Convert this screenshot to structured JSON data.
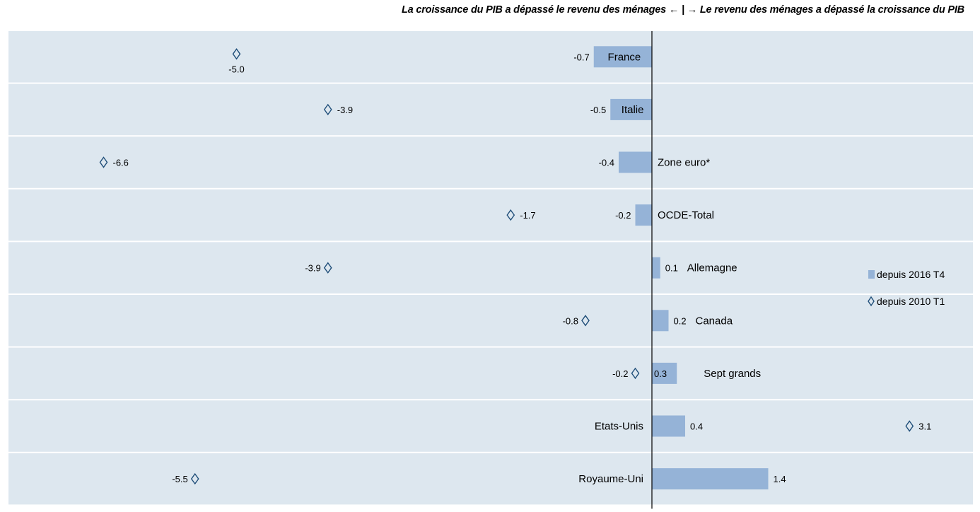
{
  "header": {
    "left_text": "La croissance du PIB a dépassé le revenu des ménages",
    "arrow_left": "←",
    "separator": "|",
    "arrow_right": "→",
    "right_text": "Le revenu des ménages a dépassé la croissance du PIB"
  },
  "chart_data": {
    "type": "bar",
    "orientation": "horizontal",
    "categories": [
      "France",
      "Italie",
      "Zone euro*",
      "OCDE-Total",
      "Allemagne",
      "Canada",
      "Sept grands",
      "Etats-Unis",
      "Royaume-Uni"
    ],
    "series": [
      {
        "name": "depuis 2016 T4",
        "mark": "bar",
        "values": [
          -0.7,
          -0.5,
          -0.4,
          -0.2,
          0.1,
          0.2,
          0.3,
          0.4,
          1.4
        ],
        "labels": [
          "-0.7",
          "-0.5",
          "-0.4",
          "-0.2",
          "0.1",
          "0.2",
          "0.3",
          "0.4",
          "1.4"
        ]
      },
      {
        "name": "depuis 2010 T1",
        "mark": "diamond",
        "values": [
          -5.0,
          -3.9,
          -6.6,
          -1.7,
          -3.9,
          -0.8,
          -0.2,
          3.1,
          -5.5
        ],
        "labels": [
          "-5.0",
          "-3.9",
          "-6.6",
          "-1.7",
          "-3.9",
          "-0.8",
          "-0.2",
          "3.1",
          "-5.5"
        ]
      }
    ],
    "xlim": [
      -7.9,
      4.0
    ],
    "legend": {
      "position": "right",
      "items": [
        {
          "label": "depuis 2016 T4",
          "symbol": "square",
          "color": "#95b3d7"
        },
        {
          "label": "depuis 2010 T1",
          "symbol": "diamond",
          "color": "#1f4e79"
        }
      ]
    },
    "colors": {
      "bar": "#95b3d7",
      "marker": "#1f4e79",
      "band": "#dde7ef"
    },
    "grid": false
  }
}
